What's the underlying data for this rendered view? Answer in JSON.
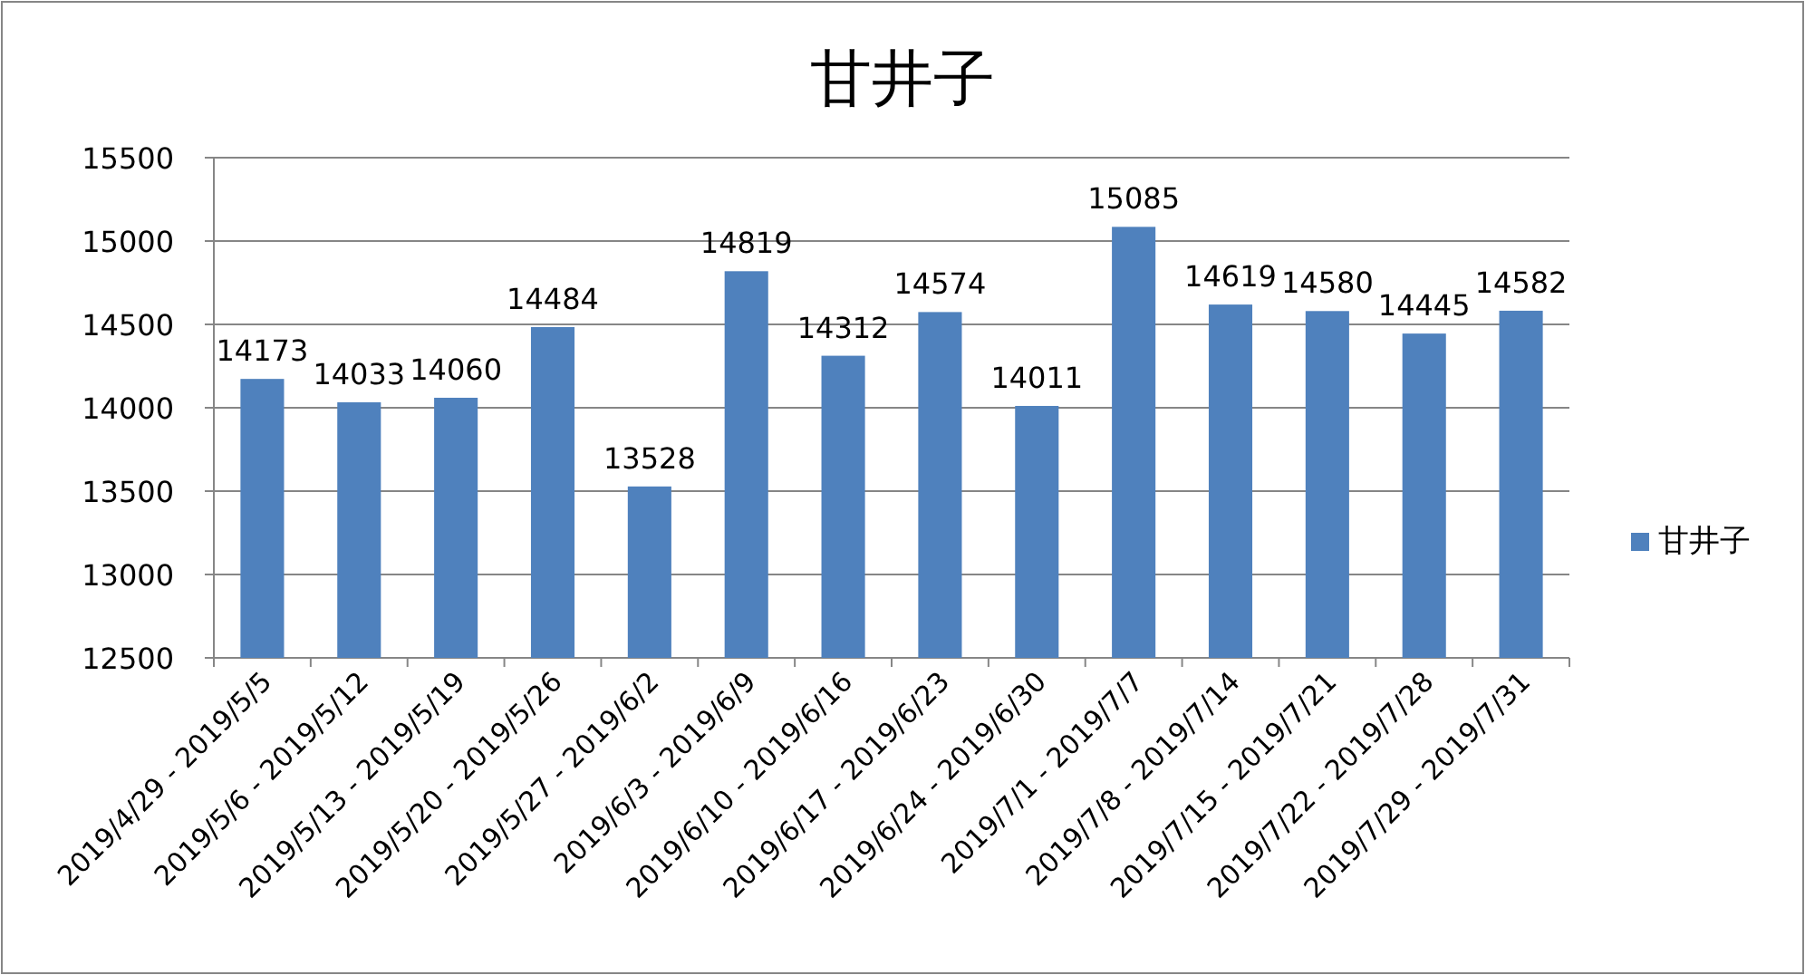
{
  "chart_data": {
    "type": "bar",
    "title": "甘井子",
    "categories": [
      "2019/4/29 - 2019/5/5",
      "2019/5/6 - 2019/5/12",
      "2019/5/13 - 2019/5/19",
      "2019/5/20 - 2019/5/26",
      "2019/5/27 - 2019/6/2",
      "2019/6/3 - 2019/6/9",
      "2019/6/10 - 2019/6/16",
      "2019/6/17 - 2019/6/23",
      "2019/6/24 - 2019/6/30",
      "2019/7/1 - 2019/7/7",
      "2019/7/8 - 2019/7/14",
      "2019/7/15 - 2019/7/21",
      "2019/7/22 - 2019/7/28",
      "2019/7/29 - 2019/7/31"
    ],
    "series": [
      {
        "name": "甘井子",
        "color": "#4f81bd",
        "values": [
          14173,
          14033,
          14060,
          14484,
          13528,
          14819,
          14312,
          14574,
          14011,
          15085,
          14619,
          14580,
          14445,
          14582
        ]
      }
    ],
    "ylim": [
      12500,
      15500
    ],
    "yticks": [
      12500,
      13000,
      13500,
      14000,
      14500,
      15000,
      15500
    ],
    "grid": "y",
    "legend": "right",
    "data_labels": true
  }
}
